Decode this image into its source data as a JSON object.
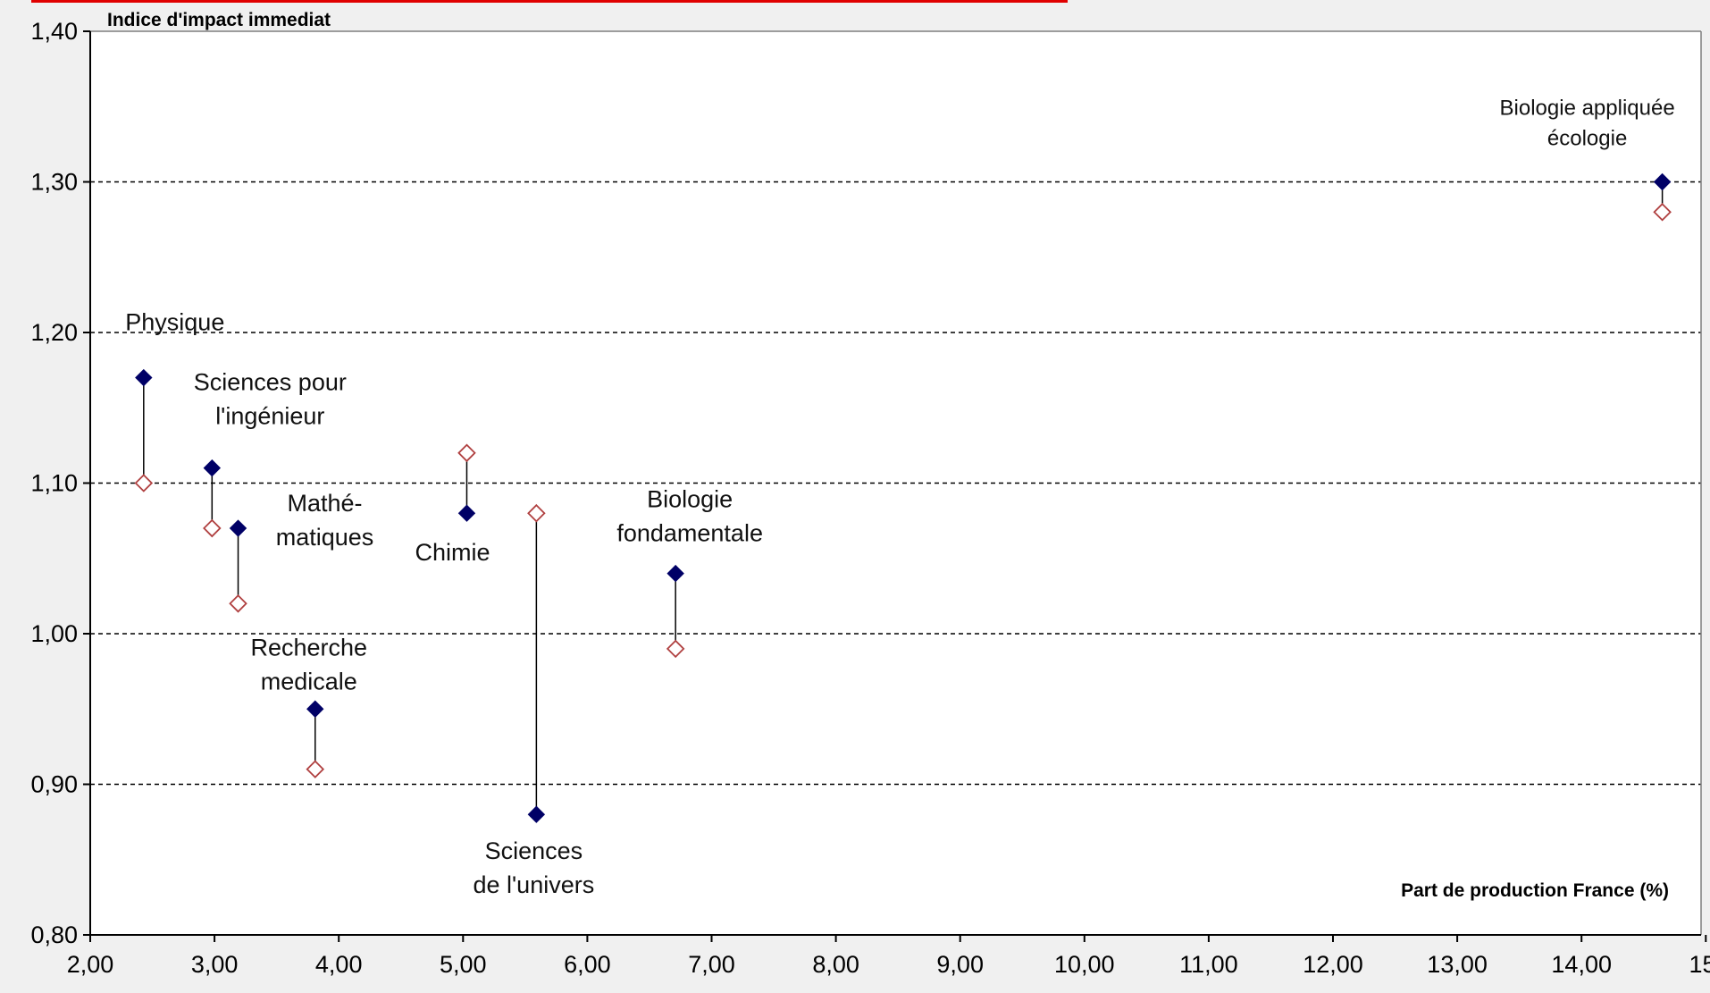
{
  "colors": {
    "background": "#f0f0f0",
    "plot_area": "#ffffff",
    "series_filled": "#000066",
    "series_hollow": "#b04040",
    "accent_bar": "#e00000"
  },
  "chart_data": {
    "type": "scatter",
    "title": "",
    "ylabel": "Indice d'impact immediat",
    "xlabel": "Part de production France (%)",
    "xlim": [
      2.0,
      15.0
    ],
    "ylim": [
      0.8,
      1.4
    ],
    "x_ticks": [
      "2,00",
      "3,00",
      "4,00",
      "5,00",
      "6,00",
      "7,00",
      "8,00",
      "9,00",
      "10,00",
      "11,00",
      "12,00",
      "13,00",
      "14,00",
      "15,"
    ],
    "y_ticks": [
      "0,80",
      "0,90",
      "1,00",
      "1,10",
      "1,20",
      "1,30",
      "1,40"
    ],
    "grid": {
      "horizontal_dashed": [
        0.9,
        1.0,
        1.1,
        1.2,
        1.3
      ]
    },
    "legend": "none",
    "points": [
      {
        "label_lines": [
          "Physique"
        ],
        "x": 2.43,
        "y_filled": 1.17,
        "y_hollow": 1.1
      },
      {
        "label_lines": [
          "Sciences pour",
          "l'ingénieur"
        ],
        "x": 2.98,
        "y_filled": 1.11,
        "y_hollow": 1.07
      },
      {
        "label_lines": [
          "Mathé-",
          "matiques"
        ],
        "x": 3.19,
        "y_filled": 1.07,
        "y_hollow": 1.02
      },
      {
        "label_lines": [
          "Recherche",
          "medicale"
        ],
        "x": 3.81,
        "y_filled": 0.95,
        "y_hollow": 0.91
      },
      {
        "label_lines": [
          "Chimie"
        ],
        "x": 5.03,
        "y_filled": 1.08,
        "y_hollow": 1.12
      },
      {
        "label_lines": [
          "Sciences",
          "de l'univers"
        ],
        "x": 5.59,
        "y_filled": 0.88,
        "y_hollow": 1.08
      },
      {
        "label_lines": [
          "Biologie",
          "fondamentale"
        ],
        "x": 6.71,
        "y_filled": 1.04,
        "y_hollow": 0.99
      },
      {
        "label_lines": [
          "Biologie appliquée",
          "écologie"
        ],
        "x": 14.65,
        "y_filled": 1.3,
        "y_hollow": 1.28
      }
    ]
  }
}
